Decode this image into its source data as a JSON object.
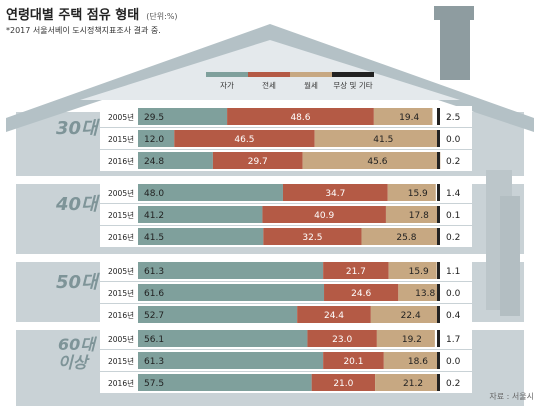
{
  "header": {
    "title": "연령대별 주택 점유 형태",
    "unit": "(단위:%)",
    "note": "*2017 서울서베이 도시정책지표조사 결과 중."
  },
  "source": "자료 : 서울시",
  "colors": {
    "own": "#7fa09c",
    "jeonse": "#b45a45",
    "monthly": "#c7a882",
    "free": "#222222",
    "house": "#c9d2d6",
    "roof": "#b4c1c6",
    "chimney": "#8e9ca0",
    "ageText": "#7e9498"
  },
  "chart_data": {
    "type": "bar",
    "stacked": true,
    "orientation": "horizontal",
    "legend": [
      "자가",
      "전세",
      "월세",
      "무상 및 기타"
    ],
    "xlim": [
      0,
      100
    ],
    "groups": [
      {
        "label": "30대",
        "rows": [
          {
            "year": "2005년",
            "values": [
              29.5,
              48.6,
              19.4,
              2.5
            ]
          },
          {
            "year": "2015년",
            "values": [
              12.0,
              46.5,
              41.5,
              0.0
            ]
          },
          {
            "year": "2016년",
            "values": [
              24.8,
              29.7,
              45.6,
              0.2
            ]
          }
        ]
      },
      {
        "label": "40대",
        "rows": [
          {
            "year": "2005년",
            "values": [
              48.0,
              34.7,
              15.9,
              1.4
            ]
          },
          {
            "year": "2015년",
            "values": [
              41.2,
              40.9,
              17.8,
              0.1
            ]
          },
          {
            "year": "2016년",
            "values": [
              41.5,
              32.5,
              25.8,
              0.2
            ]
          }
        ]
      },
      {
        "label": "50대",
        "rows": [
          {
            "year": "2005년",
            "values": [
              61.3,
              21.7,
              15.9,
              1.1
            ]
          },
          {
            "year": "2015년",
            "values": [
              61.6,
              24.6,
              13.8,
              0.0
            ]
          },
          {
            "year": "2016년",
            "values": [
              52.7,
              24.4,
              22.4,
              0.4
            ]
          }
        ]
      },
      {
        "label": "60대 이상",
        "rows": [
          {
            "year": "2005년",
            "values": [
              56.1,
              23.0,
              19.2,
              1.7
            ]
          },
          {
            "year": "2015년",
            "values": [
              61.3,
              20.1,
              18.6,
              0.0
            ]
          },
          {
            "year": "2016년",
            "values": [
              57.5,
              21.0,
              21.2,
              0.2
            ]
          }
        ]
      }
    ]
  }
}
